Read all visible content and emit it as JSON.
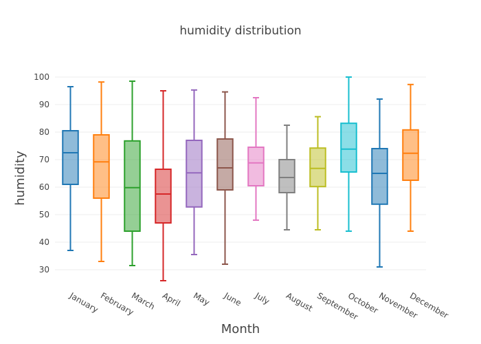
{
  "chart_data": {
    "type": "box",
    "title": "humidity distribution",
    "xlabel": "Month",
    "ylabel": "humidity",
    "ylim": [
      23,
      103
    ],
    "yticks": [
      30,
      40,
      50,
      60,
      70,
      80,
      90,
      100
    ],
    "grid": true,
    "legend": "none",
    "categories": [
      "January",
      "February",
      "March",
      "April",
      "May",
      "June",
      "July",
      "August",
      "September",
      "October",
      "November",
      "December"
    ],
    "boxes": [
      {
        "category": "January",
        "min": 37,
        "q1": 61,
        "median": 72.5,
        "q3": 80.5,
        "max": 96.5,
        "color": "#1f77b4"
      },
      {
        "category": "February",
        "min": 33,
        "q1": 56,
        "median": 69.2,
        "q3": 79,
        "max": 98.2,
        "color": "#ff7f0e"
      },
      {
        "category": "March",
        "min": 31.5,
        "q1": 44,
        "median": 59.8,
        "q3": 76.8,
        "max": 98.5,
        "color": "#2ca02c"
      },
      {
        "category": "April",
        "min": 26,
        "q1": 47,
        "median": 57.5,
        "q3": 66.5,
        "max": 95,
        "color": "#d62728"
      },
      {
        "category": "May",
        "min": 35.5,
        "q1": 52.8,
        "median": 65.2,
        "q3": 77,
        "max": 95.3,
        "color": "#9467bd"
      },
      {
        "category": "June",
        "min": 32,
        "q1": 59,
        "median": 67,
        "q3": 77.5,
        "max": 94.6,
        "color": "#8c564b"
      },
      {
        "category": "July",
        "min": 48,
        "q1": 60.5,
        "median": 68.8,
        "q3": 74.5,
        "max": 92.5,
        "color": "#e377c2"
      },
      {
        "category": "August",
        "min": 44.5,
        "q1": 58,
        "median": 63.5,
        "q3": 70,
        "max": 82.5,
        "color": "#7f7f7f"
      },
      {
        "category": "September",
        "min": 44.5,
        "q1": 60.2,
        "median": 66.8,
        "q3": 74.2,
        "max": 85.6,
        "color": "#bcbd22"
      },
      {
        "category": "October",
        "min": 44,
        "q1": 65.5,
        "median": 73.8,
        "q3": 83.2,
        "max": 100,
        "color": "#17becf"
      },
      {
        "category": "November",
        "min": 31,
        "q1": 53.8,
        "median": 65,
        "q3": 74,
        "max": 92,
        "color": "#1f77b4"
      },
      {
        "category": "December",
        "min": 44,
        "q1": 62.5,
        "median": 72.3,
        "q3": 80.8,
        "max": 97.3,
        "color": "#ff7f0e"
      }
    ]
  }
}
